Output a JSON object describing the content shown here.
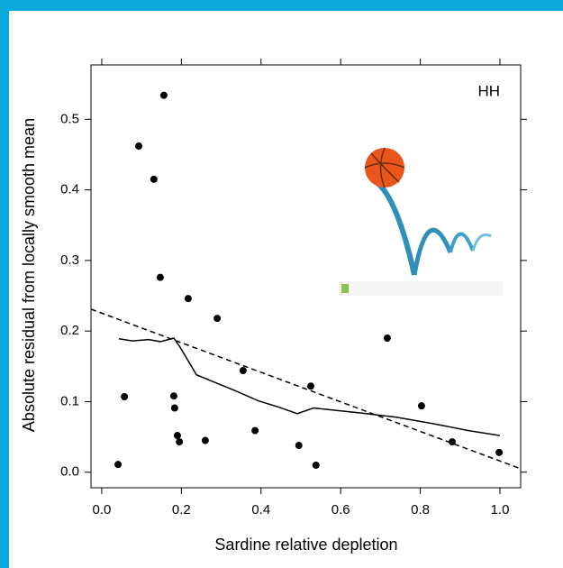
{
  "chart_data": {
    "type": "scatter",
    "panel_label": "HH",
    "x_label": "Sardine relative depletion",
    "y_label": "Absolute residual from locally smooth mean",
    "xlim": [
      -0.027,
      1.052
    ],
    "ylim": [
      -0.022,
      0.577
    ],
    "xticks": [
      {
        "value": 0,
        "label": "0.0"
      },
      0.2,
      0.4,
      0.6,
      0.8,
      {
        "value": 1,
        "label": "1.0"
      }
    ],
    "yticks": [
      {
        "value": 0,
        "label": "0.0"
      },
      0.1,
      0.2,
      0.3,
      0.4,
      0.5
    ],
    "series": [
      {
        "type": "scatter",
        "color": "#000000",
        "x": [
          0.041,
          0.057,
          0.093,
          0.131,
          0.156,
          0.147,
          0.181,
          0.183,
          0.19,
          0.195,
          0.217,
          0.26,
          0.29,
          0.355,
          0.385,
          0.495,
          0.525,
          0.538,
          0.717,
          0.803,
          0.88,
          0.998
        ],
        "values": [
          0.011,
          0.107,
          0.462,
          0.415,
          0.534,
          0.276,
          0.108,
          0.091,
          0.052,
          0.043,
          0.246,
          0.045,
          0.218,
          0.144,
          0.059,
          0.038,
          0.122,
          0.01,
          0.19,
          0.094,
          0.043,
          0.028
        ]
      },
      {
        "type": "line",
        "color": "#000000",
        "dashed": false,
        "x": [
          0.043,
          0.077,
          0.118,
          0.147,
          0.181,
          0.197,
          0.219,
          0.238,
          0.281,
          0.333,
          0.394,
          0.446,
          0.491,
          0.532,
          0.649,
          0.74,
          0.83,
          0.921,
          1.0
        ],
        "values": [
          0.189,
          0.186,
          0.188,
          0.185,
          0.19,
          0.177,
          0.156,
          0.138,
          0.128,
          0.116,
          0.101,
          0.092,
          0.083,
          0.091,
          0.084,
          0.078,
          0.069,
          0.059,
          0.052
        ]
      },
      {
        "type": "line",
        "color": "#000000",
        "dashed": true,
        "x": [
          -0.027,
          1.052
        ],
        "values": [
          0.231,
          0.005
        ]
      }
    ]
  }
}
